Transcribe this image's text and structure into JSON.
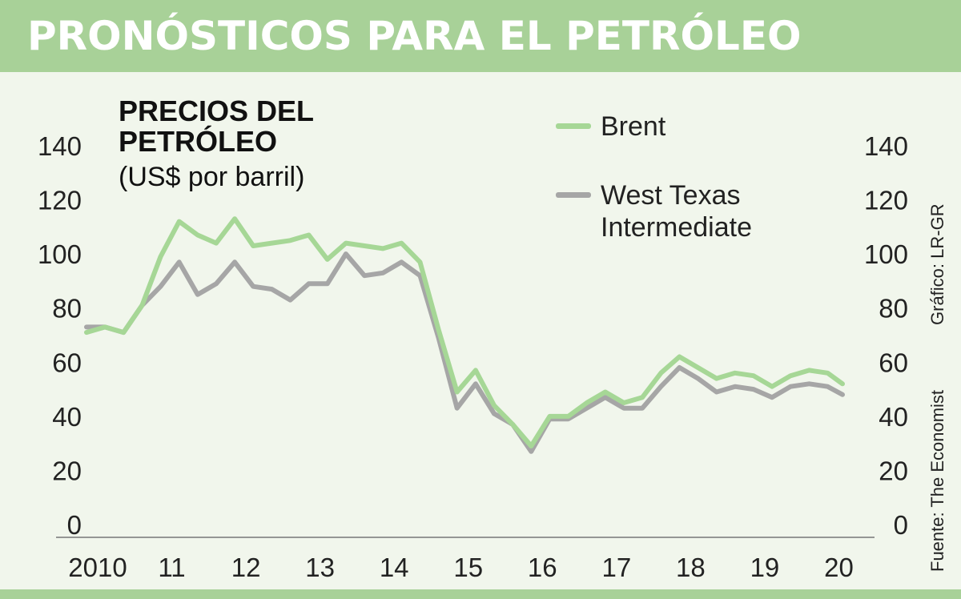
{
  "header": {
    "title": "PRONÓSTICOS PARA EL PETRÓLEO"
  },
  "notes": {
    "credit": "Gráfico: LR-GR",
    "source": "Fuente: The Economist"
  },
  "chart_data": {
    "type": "line",
    "title": "PRECIOS DEL PETRÓLEO",
    "unit": "(US$ por barril)",
    "x_ticks": [
      "2010",
      "11",
      "12",
      "13",
      "14",
      "15",
      "16",
      "17",
      "18",
      "19",
      "20"
    ],
    "x_range": [
      2010,
      2020.2
    ],
    "y_ticks": [
      "0",
      "20",
      "40",
      "60",
      "80",
      "100",
      "120",
      "140"
    ],
    "ylim": [
      0,
      140
    ],
    "grid": false,
    "legend_position": "top-right",
    "colors": {
      "Brent": "#a6d796",
      "West Texas Intermediate": "#a6a6a6"
    },
    "x": [
      2010.0,
      2010.25,
      2010.5,
      2010.75,
      2011.0,
      2011.25,
      2011.5,
      2011.75,
      2012.0,
      2012.25,
      2012.5,
      2012.75,
      2013.0,
      2013.25,
      2013.5,
      2013.75,
      2014.0,
      2014.25,
      2014.5,
      2014.75,
      2015.0,
      2015.25,
      2015.5,
      2015.75,
      2016.0,
      2016.25,
      2016.5,
      2016.75,
      2017.0,
      2017.25,
      2017.5,
      2017.75,
      2018.0,
      2018.25,
      2018.5,
      2018.75,
      2019.0,
      2019.25,
      2019.5,
      2019.75,
      2020.0,
      2020.2
    ],
    "series": [
      {
        "name": "Brent",
        "values": [
          71,
          73,
          71,
          81,
          99,
          112,
          107,
          104,
          113,
          103,
          104,
          105,
          107,
          98,
          104,
          103,
          102,
          104,
          97,
          72,
          49,
          57,
          44,
          37,
          29,
          40,
          40,
          45,
          49,
          45,
          47,
          56,
          62,
          58,
          54,
          56,
          55,
          51,
          55,
          57,
          56,
          52
        ]
      },
      {
        "name": "West Texas Intermediate",
        "values": [
          73,
          73,
          71,
          81,
          88,
          97,
          85,
          89,
          97,
          88,
          87,
          83,
          89,
          89,
          100,
          92,
          93,
          97,
          92,
          69,
          43,
          52,
          41,
          37,
          27,
          39,
          39,
          43,
          47,
          43,
          43,
          51,
          58,
          54,
          49,
          51,
          50,
          47,
          51,
          52,
          51,
          48
        ]
      }
    ]
  }
}
